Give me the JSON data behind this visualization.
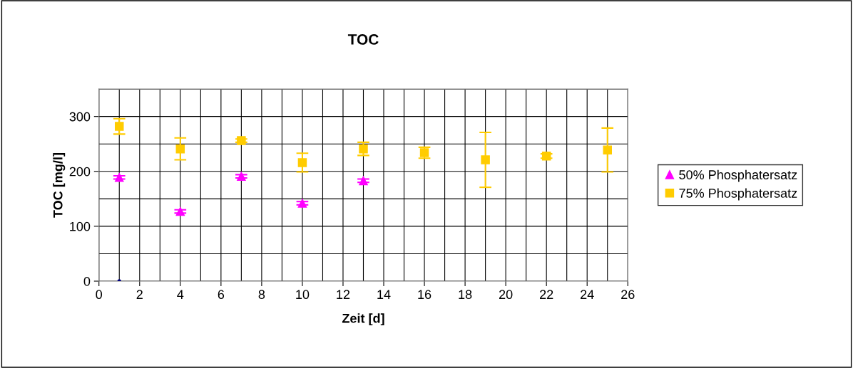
{
  "chart_data": {
    "type": "scatter",
    "title": "TOC",
    "xlabel": "Zeit [d]",
    "ylabel": "TOC [mg/l]",
    "xlim": [
      0,
      26
    ],
    "xticks": [
      0,
      2,
      4,
      6,
      8,
      10,
      12,
      14,
      16,
      18,
      20,
      22,
      24,
      26
    ],
    "ylim": [
      0,
      350
    ],
    "yticks": [
      0,
      100,
      200,
      300
    ],
    "grid": true,
    "legend": "right",
    "series": [
      {
        "name": "50% Phosphatersatz",
        "color": "#ff00ff",
        "marker": "triangle",
        "x": [
          1,
          4,
          7,
          10,
          13
        ],
        "values": [
          189,
          127,
          191,
          142,
          183
        ],
        "errors": [
          3,
          3,
          3,
          3,
          3
        ]
      },
      {
        "name": "75% Phosphatersatz",
        "color": "#ffcc00",
        "marker": "square",
        "x": [
          1,
          4,
          7,
          10,
          13,
          16,
          19,
          22,
          25
        ],
        "values": [
          282,
          241,
          256,
          216,
          241,
          234,
          221,
          228,
          239
        ],
        "errors": [
          14,
          20,
          3,
          17,
          12,
          10,
          50,
          4,
          40
        ]
      },
      {
        "color": "#000080",
        "marker": "circle",
        "x": [
          1
        ],
        "values": [
          0
        ]
      }
    ]
  }
}
